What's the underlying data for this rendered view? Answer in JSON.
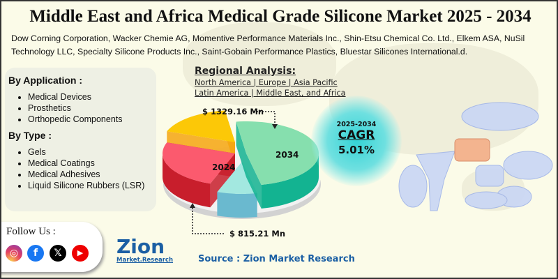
{
  "title": "Middle East and Africa Medical Grade Silicone Market 2025 - 2034",
  "companies": "Dow Corning Corporation, Wacker Chemie AG, Momentive Performance Materials Inc., Shin-Etsu Chemical Co. Ltd., Elkem ASA, NuSil Technology LLC, Specialty Silicone Products Inc., Saint-Gobain Performance Plastics, Bluestar Silicones International.d.",
  "by_application": {
    "heading": "By Application :",
    "items": [
      "Medical Devices",
      "Prosthetics",
      "Orthopedic Components"
    ]
  },
  "by_type": {
    "heading": "By Type :",
    "items": [
      "Gels",
      "Medical Coatings",
      "Medical Adhesives",
      "Liquid Silicone Rubbers (LSR)"
    ]
  },
  "regional": {
    "heading": "Regional Analysis:",
    "line1": "North America | Europe | Asia Pacific",
    "line2": "Latin America | Middle East, and Africa"
  },
  "pie": {
    "label_2034": "2034",
    "label_2024": "2024",
    "value_2034": "$ 1329.16 Mn",
    "value_2024": "$  815.21 Mn",
    "colors": {
      "green": "#86dfae",
      "red": "#fb5a6e",
      "yellow": "#fcc807",
      "cyan": "#a3e8e0"
    }
  },
  "cagr": {
    "period": "2025-2034",
    "label": "CAGR",
    "value": "5.01%"
  },
  "follow": {
    "label": "Follow Us :",
    "icons": [
      "instagram-icon",
      "facebook-icon",
      "x-icon",
      "youtube-icon"
    ]
  },
  "logo": {
    "name": "Zion",
    "sub": "Market.Research"
  },
  "source": "Source : Zion Market Research"
}
